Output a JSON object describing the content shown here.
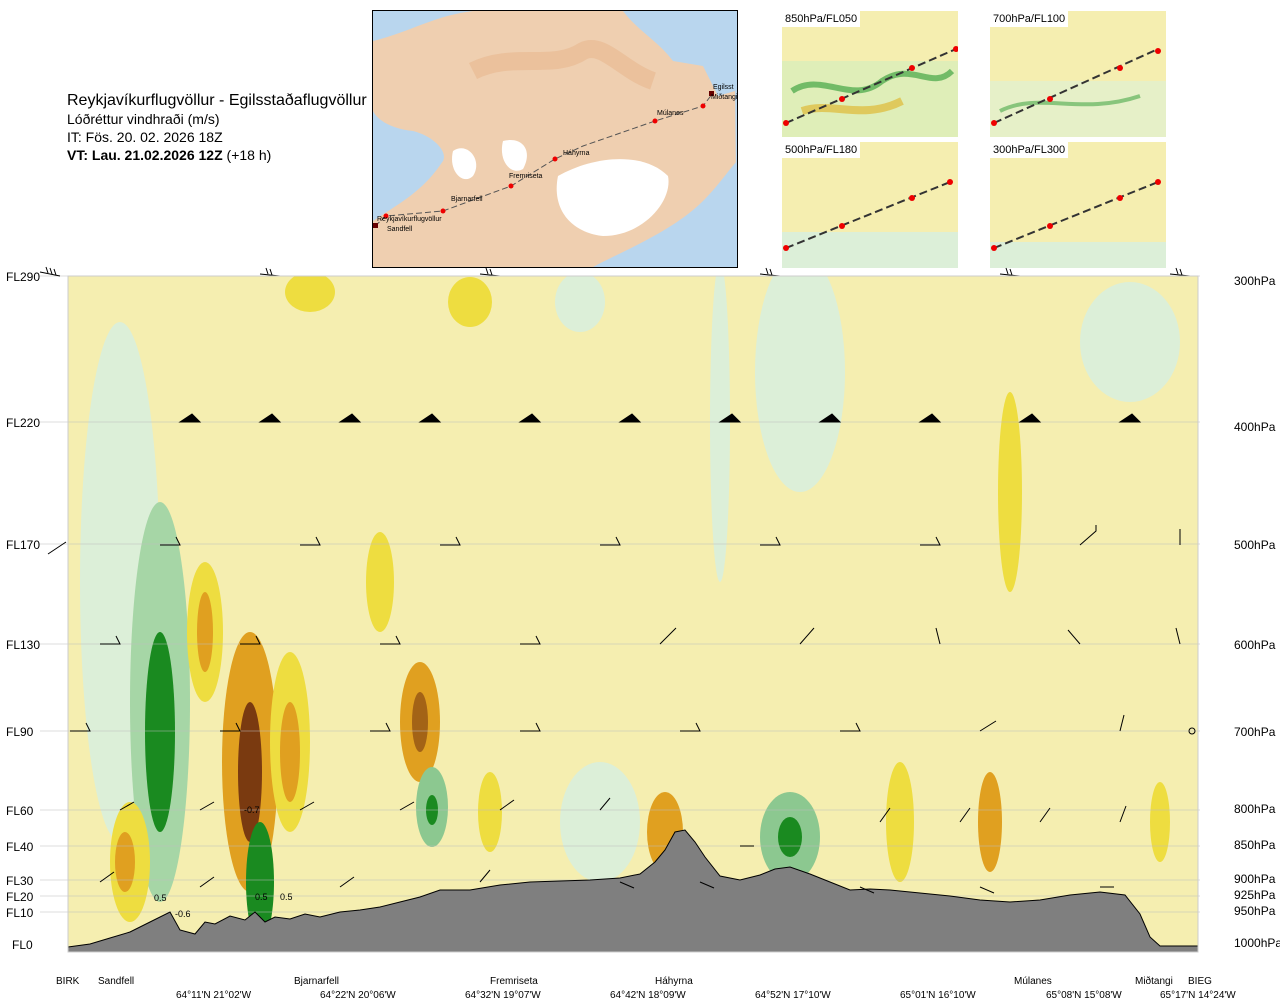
{
  "header": {
    "title": "Reykjavíkurflugvöllur - Egilsstaðaflugvöllur",
    "variable": "Lóðréttur vindhraði (m/s)",
    "issue_time": "IT: Fös. 20. 02. 2026 18Z",
    "valid_time": "VT: Lau. 21.02.2026 12Z",
    "lead": "(+18 h)"
  },
  "route_map": {
    "waypoints": [
      "Reykjavíkurflugvöllur",
      "Sandfell",
      "Bjarnarfell",
      "Fremriseta",
      "Háhyrna",
      "Múlanes",
      "Egilsst",
      "Miðtangi"
    ]
  },
  "minimaps": [
    {
      "label": "850hPa/FL050"
    },
    {
      "label": "700hPa/FL100"
    },
    {
      "label": "500hPa/FL180"
    },
    {
      "label": "300hPa/FL300"
    }
  ],
  "chart_data": {
    "type": "heatmap",
    "title": "Lóðréttur vindhraði (m/s)",
    "y_levels_fl": [
      "FL290",
      "FL220",
      "FL170",
      "FL130",
      "FL90",
      "FL60",
      "FL40",
      "FL30",
      "FL20",
      "FL10",
      "FL0"
    ],
    "y_levels_hpa": [
      "300hPa",
      "400hPa",
      "500hPa",
      "600hPa",
      "700hPa",
      "800hPa",
      "850hPa",
      "900hPa",
      "925hPa",
      "950hPa",
      "1000hPa"
    ],
    "waypoints": [
      "BIRK",
      "Sandfell",
      "Bjarnarfell",
      "Fremriseta",
      "Háhyrna",
      "Múlanes",
      "Miðtangi",
      "BIEG"
    ],
    "coordinates": [
      "64°11'N 21°02'W",
      "64°22'N 20°06'W",
      "64°32'N 19°07'W",
      "64°42'N 18°09'W",
      "64°52'N 17°10'W",
      "65°01'N 16°10'W",
      "65°08'N 15°08'W",
      "65°17'N 14°24'W"
    ],
    "contour_labels": [
      "-0.7",
      "0.5",
      "-0.6",
      "0.5",
      "0.5"
    ],
    "colors": {
      "strong_up": "#7a3a10",
      "up": "#e0a020",
      "weak_up": "#eedd40",
      "neutral": "#f5eeb0",
      "weak_down": "#dcefd8",
      "down": "#8cc890",
      "strong_down": "#1a8a20",
      "terrain": "#7f7f7f"
    }
  }
}
